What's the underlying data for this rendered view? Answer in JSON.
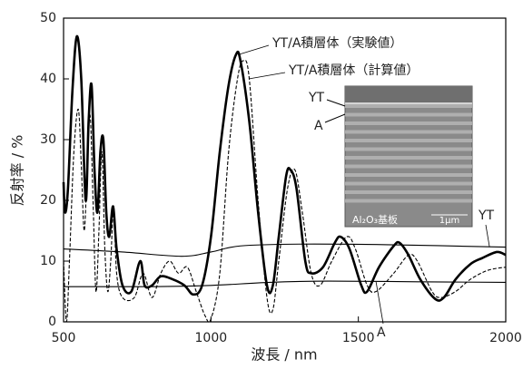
{
  "chart_data": {
    "type": "line",
    "xlabel": "波長 / nm",
    "ylabel": "反射率 / %",
    "xlim": [
      500,
      2000
    ],
    "xticks": [
      500,
      1000,
      1500,
      2000
    ],
    "ylim": [
      0,
      50
    ],
    "yticks": [
      0,
      10,
      20,
      30,
      40,
      50
    ],
    "series": [
      {
        "name": "YT/A積層体（実験値）",
        "color": "#000000",
        "style": "solid-thick",
        "x": [
          500,
          505,
          515,
          530,
          545,
          560,
          575,
          585,
          595,
          605,
          615,
          625,
          635,
          645,
          655,
          668,
          680,
          700,
          730,
          760,
          775,
          800,
          830,
          870,
          910,
          940,
          970,
          1000,
          1030,
          1060,
          1085,
          1100,
          1130,
          1160,
          1190,
          1210,
          1230,
          1255,
          1270,
          1290,
          1320,
          1340,
          1380,
          1420,
          1440,
          1470,
          1510,
          1530,
          1570,
          1620,
          1640,
          1670,
          1710,
          1760,
          1790,
          1830,
          1880,
          1920,
          1970,
          2000
        ],
        "values": [
          23,
          18,
          22,
          38,
          47,
          40,
          20,
          33,
          39,
          25,
          18,
          28,
          30,
          18,
          14,
          19,
          12,
          6,
          5,
          10,
          6,
          6,
          7.5,
          7,
          6,
          4.5,
          6,
          14,
          28,
          39,
          44,
          43,
          33,
          18,
          6,
          6,
          14,
          24,
          25,
          22,
          10,
          8,
          9,
          13,
          14,
          12,
          6,
          5,
          9,
          12.5,
          13,
          11,
          7,
          3.8,
          4,
          7,
          9.5,
          10.5,
          11.5,
          11
        ]
      },
      {
        "name": "YT/A積層体（計算値）",
        "color": "#000000",
        "style": "dashed",
        "x": [
          500,
          510,
          520,
          535,
          550,
          560,
          570,
          580,
          590,
          600,
          610,
          620,
          630,
          640,
          650,
          660,
          670,
          680,
          700,
          740,
          770,
          800,
          830,
          860,
          890,
          920,
          950,
          980,
          1000,
          1030,
          1060,
          1090,
          1110,
          1130,
          1160,
          1190,
          1210,
          1230,
          1260,
          1285,
          1310,
          1340,
          1370,
          1410,
          1460,
          1490,
          1530,
          1560,
          1620,
          1670,
          1700,
          1750,
          1780,
          1830,
          1880,
          1940,
          2000
        ],
        "values": [
          10,
          0,
          10,
          28,
          35,
          26,
          15,
          25,
          34,
          20,
          5,
          15,
          28,
          12,
          5,
          10,
          19,
          8,
          4,
          4,
          8,
          4,
          8,
          10,
          8,
          9,
          5,
          1,
          0.5,
          8,
          28,
          40,
          43,
          40,
          20,
          4,
          2,
          10,
          22,
          25,
          18,
          8,
          6,
          10,
          14,
          12,
          6,
          5,
          8,
          11,
          10,
          5,
          4,
          5,
          7,
          8.5,
          9
        ]
      },
      {
        "name": "YT",
        "color": "#000000",
        "style": "solid-thin",
        "x": [
          500,
          700,
          900,
          1000,
          1100,
          1300,
          1600,
          2000
        ],
        "values": [
          12,
          11.5,
          10.8,
          11.5,
          12.5,
          12.8,
          12.7,
          12.3
        ]
      },
      {
        "name": "A",
        "color": "#000000",
        "style": "solid-thin",
        "x": [
          500,
          800,
          1000,
          1200,
          1400,
          1700,
          2000
        ],
        "values": [
          5.8,
          5.8,
          6,
          6.5,
          6.7,
          6.6,
          6.5
        ]
      }
    ],
    "inset": {
      "labels": [
        "YT",
        "A",
        "Al₂O₃基板",
        "1μm"
      ]
    }
  }
}
